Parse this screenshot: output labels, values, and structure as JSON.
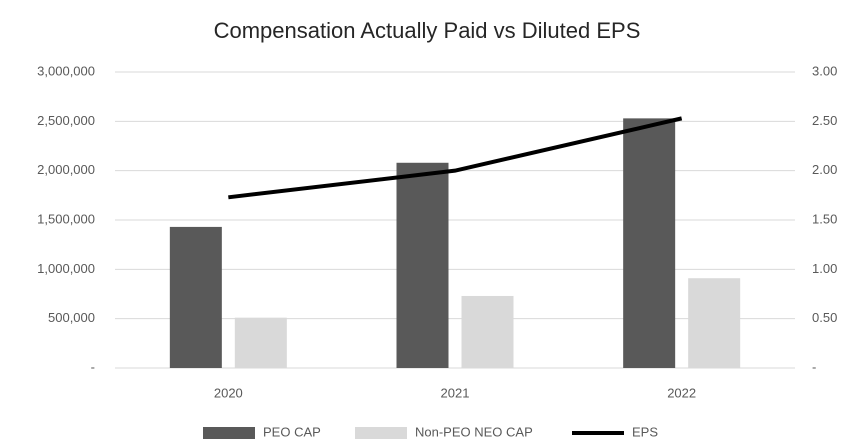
{
  "chart_data": {
    "type": "bar",
    "title": "Compensation Actually Paid vs Diluted EPS",
    "categories": [
      "2020",
      "2021",
      "2022"
    ],
    "series": [
      {
        "name": "PEO CAP",
        "color": "#595959",
        "values": [
          1430000,
          2080000,
          2530000
        ]
      },
      {
        "name": "Non-PEO NEO CAP",
        "color": "#d9d9d9",
        "values": [
          510000,
          730000,
          910000
        ]
      },
      {
        "name": "EPS",
        "color": "#000000",
        "type": "line",
        "axis": "y2",
        "values": [
          1.73,
          2.0,
          2.53
        ]
      }
    ],
    "ylim": [
      0,
      3000000
    ],
    "yticks": [
      {
        "value": 0,
        "label": "-"
      },
      {
        "value": 500000,
        "label": "500,000"
      },
      {
        "value": 1000000,
        "label": "1,000,000"
      },
      {
        "value": 1500000,
        "label": "1,500,000"
      },
      {
        "value": 2000000,
        "label": "2,000,000"
      },
      {
        "value": 2500000,
        "label": "2,500,000"
      },
      {
        "value": 3000000,
        "label": "3,000,000"
      }
    ],
    "y2lim": [
      0,
      3
    ],
    "y2ticks": [
      {
        "value": 0,
        "label": "-"
      },
      {
        "value": 0.5,
        "label": "0.50"
      },
      {
        "value": 1,
        "label": "1.00"
      },
      {
        "value": 1.5,
        "label": "1.50"
      },
      {
        "value": 2,
        "label": "2.00"
      },
      {
        "value": 2.5,
        "label": "2.50"
      },
      {
        "value": 3,
        "label": "3.00"
      }
    ],
    "grid": true,
    "legend": "bottom"
  }
}
